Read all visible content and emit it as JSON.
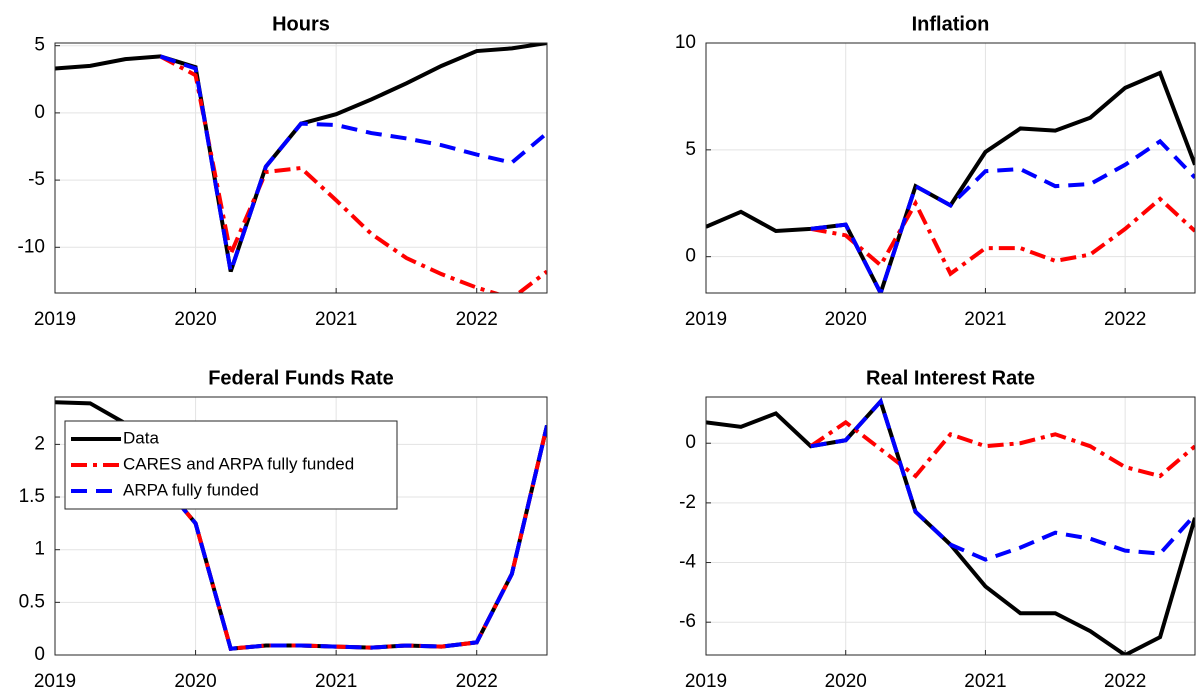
{
  "chart_data": [
    {
      "type": "line",
      "title": "Hours",
      "x": [
        2019,
        2019.25,
        2019.5,
        2019.75,
        2020,
        2020.25,
        2020.5,
        2020.75,
        2021,
        2021.25,
        2021.5,
        2021.75,
        2022,
        2022.25,
        2022.5
      ],
      "xlim": [
        2019,
        2022.5
      ],
      "xticks": [
        2019,
        2020,
        2021,
        2022
      ],
      "ylim": [
        -13.4,
        5.2
      ],
      "yticks": [
        -10,
        -5,
        0,
        5
      ],
      "grid": true,
      "series": [
        {
          "color": "#000000",
          "dash": "solid",
          "values": [
            3.3,
            3.5,
            4.0,
            4.2,
            3.4,
            -11.8,
            -4.0,
            -0.8,
            -0.1,
            1.0,
            2.2,
            3.5,
            4.6,
            4.8,
            5.2
          ]
        },
        {
          "color": "#ff0000",
          "dash": "dashdot",
          "values": [
            null,
            null,
            null,
            4.2,
            2.8,
            -10.5,
            -4.4,
            -4.1,
            -6.5,
            -9.0,
            -10.8,
            -12.0,
            -13.0,
            -13.8,
            -11.8
          ]
        },
        {
          "color": "#0000ff",
          "dash": "dashed",
          "values": [
            null,
            null,
            null,
            4.2,
            3.3,
            -11.8,
            -4.0,
            -0.8,
            -0.9,
            -1.5,
            -1.9,
            -2.4,
            -3.1,
            -3.7,
            -1.5
          ]
        }
      ]
    },
    {
      "type": "line",
      "title": "Inflation",
      "x": [
        2019,
        2019.25,
        2019.5,
        2019.75,
        2020,
        2020.25,
        2020.5,
        2020.75,
        2021,
        2021.25,
        2021.5,
        2021.75,
        2022,
        2022.25,
        2022.5
      ],
      "xlim": [
        2019,
        2022.5
      ],
      "xticks": [
        2019,
        2020,
        2021,
        2022
      ],
      "ylim": [
        -1.7,
        10
      ],
      "yticks": [
        0,
        5,
        10
      ],
      "grid": true,
      "series": [
        {
          "color": "#000000",
          "dash": "solid",
          "values": [
            1.4,
            2.1,
            1.2,
            1.3,
            1.5,
            -1.7,
            3.3,
            2.4,
            4.9,
            6.0,
            5.9,
            6.5,
            7.9,
            8.6,
            4.3
          ]
        },
        {
          "color": "#ff0000",
          "dash": "dashdot",
          "values": [
            null,
            null,
            null,
            1.3,
            1.0,
            -0.4,
            2.5,
            -0.8,
            0.4,
            0.4,
            -0.2,
            0.1,
            1.3,
            2.7,
            1.2
          ]
        },
        {
          "color": "#0000ff",
          "dash": "dashed",
          "values": [
            null,
            null,
            null,
            1.3,
            1.5,
            -1.7,
            3.3,
            2.4,
            4.0,
            4.1,
            3.3,
            3.4,
            4.3,
            5.4,
            3.7
          ]
        }
      ]
    },
    {
      "type": "line",
      "title": "Federal Funds Rate",
      "x": [
        2019,
        2019.25,
        2019.5,
        2019.75,
        2020,
        2020.25,
        2020.5,
        2020.75,
        2021,
        2021.25,
        2021.5,
        2021.75,
        2022,
        2022.25,
        2022.5
      ],
      "xlim": [
        2019,
        2022.5
      ],
      "xticks": [
        2019,
        2020,
        2021,
        2022
      ],
      "ylim": [
        0,
        2.45
      ],
      "yticks": [
        0,
        0.5,
        1,
        1.5,
        2
      ],
      "grid": true,
      "legend": "upper left",
      "series": [
        {
          "name": "Data",
          "color": "#000000",
          "dash": "solid",
          "values": [
            2.4,
            2.39,
            2.2,
            1.65,
            1.25,
            0.06,
            0.09,
            0.09,
            0.08,
            0.07,
            0.09,
            0.08,
            0.12,
            0.77,
            2.18
          ]
        },
        {
          "name": "CARES and ARPA fully funded",
          "color": "#ff0000",
          "dash": "dashdot",
          "values": [
            null,
            null,
            null,
            1.65,
            1.25,
            0.06,
            0.09,
            0.09,
            0.08,
            0.07,
            0.09,
            0.08,
            0.12,
            0.77,
            2.18
          ]
        },
        {
          "name": "ARPA fully funded",
          "color": "#0000ff",
          "dash": "dashed",
          "values": [
            null,
            null,
            null,
            1.65,
            1.25,
            0.06,
            0.09,
            0.09,
            0.08,
            0.07,
            0.09,
            0.08,
            0.12,
            0.77,
            2.18
          ]
        }
      ]
    },
    {
      "type": "line",
      "title": "Real Interest Rate",
      "x": [
        2019,
        2019.25,
        2019.5,
        2019.75,
        2020,
        2020.25,
        2020.5,
        2020.75,
        2021,
        2021.25,
        2021.5,
        2021.75,
        2022,
        2022.25,
        2022.5
      ],
      "xlim": [
        2019,
        2022.5
      ],
      "xticks": [
        2019,
        2020,
        2021,
        2022
      ],
      "ylim": [
        -7.1,
        1.55
      ],
      "yticks": [
        -6,
        -4,
        -2,
        0
      ],
      "grid": true,
      "series": [
        {
          "color": "#000000",
          "dash": "solid",
          "values": [
            0.7,
            0.55,
            1.0,
            -0.1,
            0.1,
            1.4,
            -2.3,
            -3.4,
            -4.8,
            -5.7,
            -5.7,
            -6.3,
            -7.1,
            -6.5,
            -2.5
          ]
        },
        {
          "color": "#ff0000",
          "dash": "dashdot",
          "values": [
            null,
            null,
            null,
            -0.1,
            0.7,
            -0.2,
            -1.1,
            0.3,
            -0.1,
            0.0,
            0.3,
            -0.1,
            -0.8,
            -1.1,
            -0.1
          ]
        },
        {
          "color": "#0000ff",
          "dash": "dashed",
          "values": [
            null,
            null,
            null,
            -0.1,
            0.1,
            1.4,
            -2.3,
            -3.4,
            -3.9,
            -3.5,
            -3.0,
            -3.2,
            -3.6,
            -3.7,
            -2.4
          ]
        }
      ]
    }
  ]
}
